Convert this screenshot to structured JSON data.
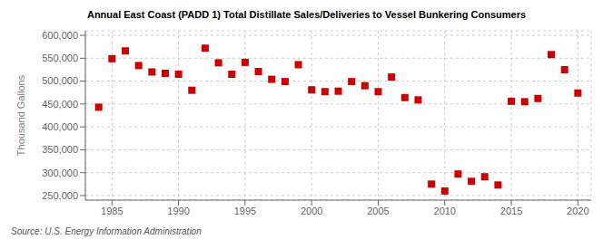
{
  "chart_data": {
    "type": "scatter",
    "title": "Annual East Coast (PADD 1) Total Distillate Sales/Deliveries to Vessel Bunkering Consumers",
    "y_label": "Thousand Gallons",
    "annotations": [
      "Source: U.S. Energy Information Administration"
    ],
    "x": [
      1984,
      1985,
      1986,
      1987,
      1988,
      1989,
      1990,
      1991,
      1992,
      1993,
      1994,
      1995,
      1996,
      1997,
      1998,
      1999,
      2000,
      2001,
      2002,
      2003,
      2004,
      2005,
      2006,
      2007,
      2008,
      2009,
      2010,
      2011,
      2012,
      2013,
      2014,
      2015,
      2016,
      2017,
      2018,
      2019,
      2020
    ],
    "values": [
      443000,
      549000,
      566000,
      534000,
      520000,
      517000,
      515000,
      480000,
      572000,
      540000,
      515000,
      541000,
      521000,
      504000,
      499000,
      536000,
      481000,
      477000,
      478000,
      499000,
      490000,
      477000,
      509000,
      464000,
      459000,
      275000,
      260000,
      297000,
      281000,
      291000,
      273000,
      456000,
      455000,
      462000,
      558000,
      525000,
      474000
    ],
    "color": "#cc0000",
    "marker": "square",
    "xlim": [
      1983,
      2021
    ],
    "ylim": [
      240000,
      610000
    ],
    "xticks": [
      1985,
      1990,
      1995,
      2000,
      2005,
      2010,
      2015,
      2020
    ],
    "yticks": [
      {
        "value": 250000,
        "label": "250,000"
      },
      {
        "value": 300000,
        "label": "300,000"
      },
      {
        "value": 350000,
        "label": "350,000"
      },
      {
        "value": 400000,
        "label": "400,000"
      },
      {
        "value": 450000,
        "label": "450,000"
      },
      {
        "value": 500000,
        "label": "500,000"
      },
      {
        "value": 550000,
        "label": "550,000"
      },
      {
        "value": 600000,
        "label": "600,000"
      }
    ],
    "grid": true
  }
}
